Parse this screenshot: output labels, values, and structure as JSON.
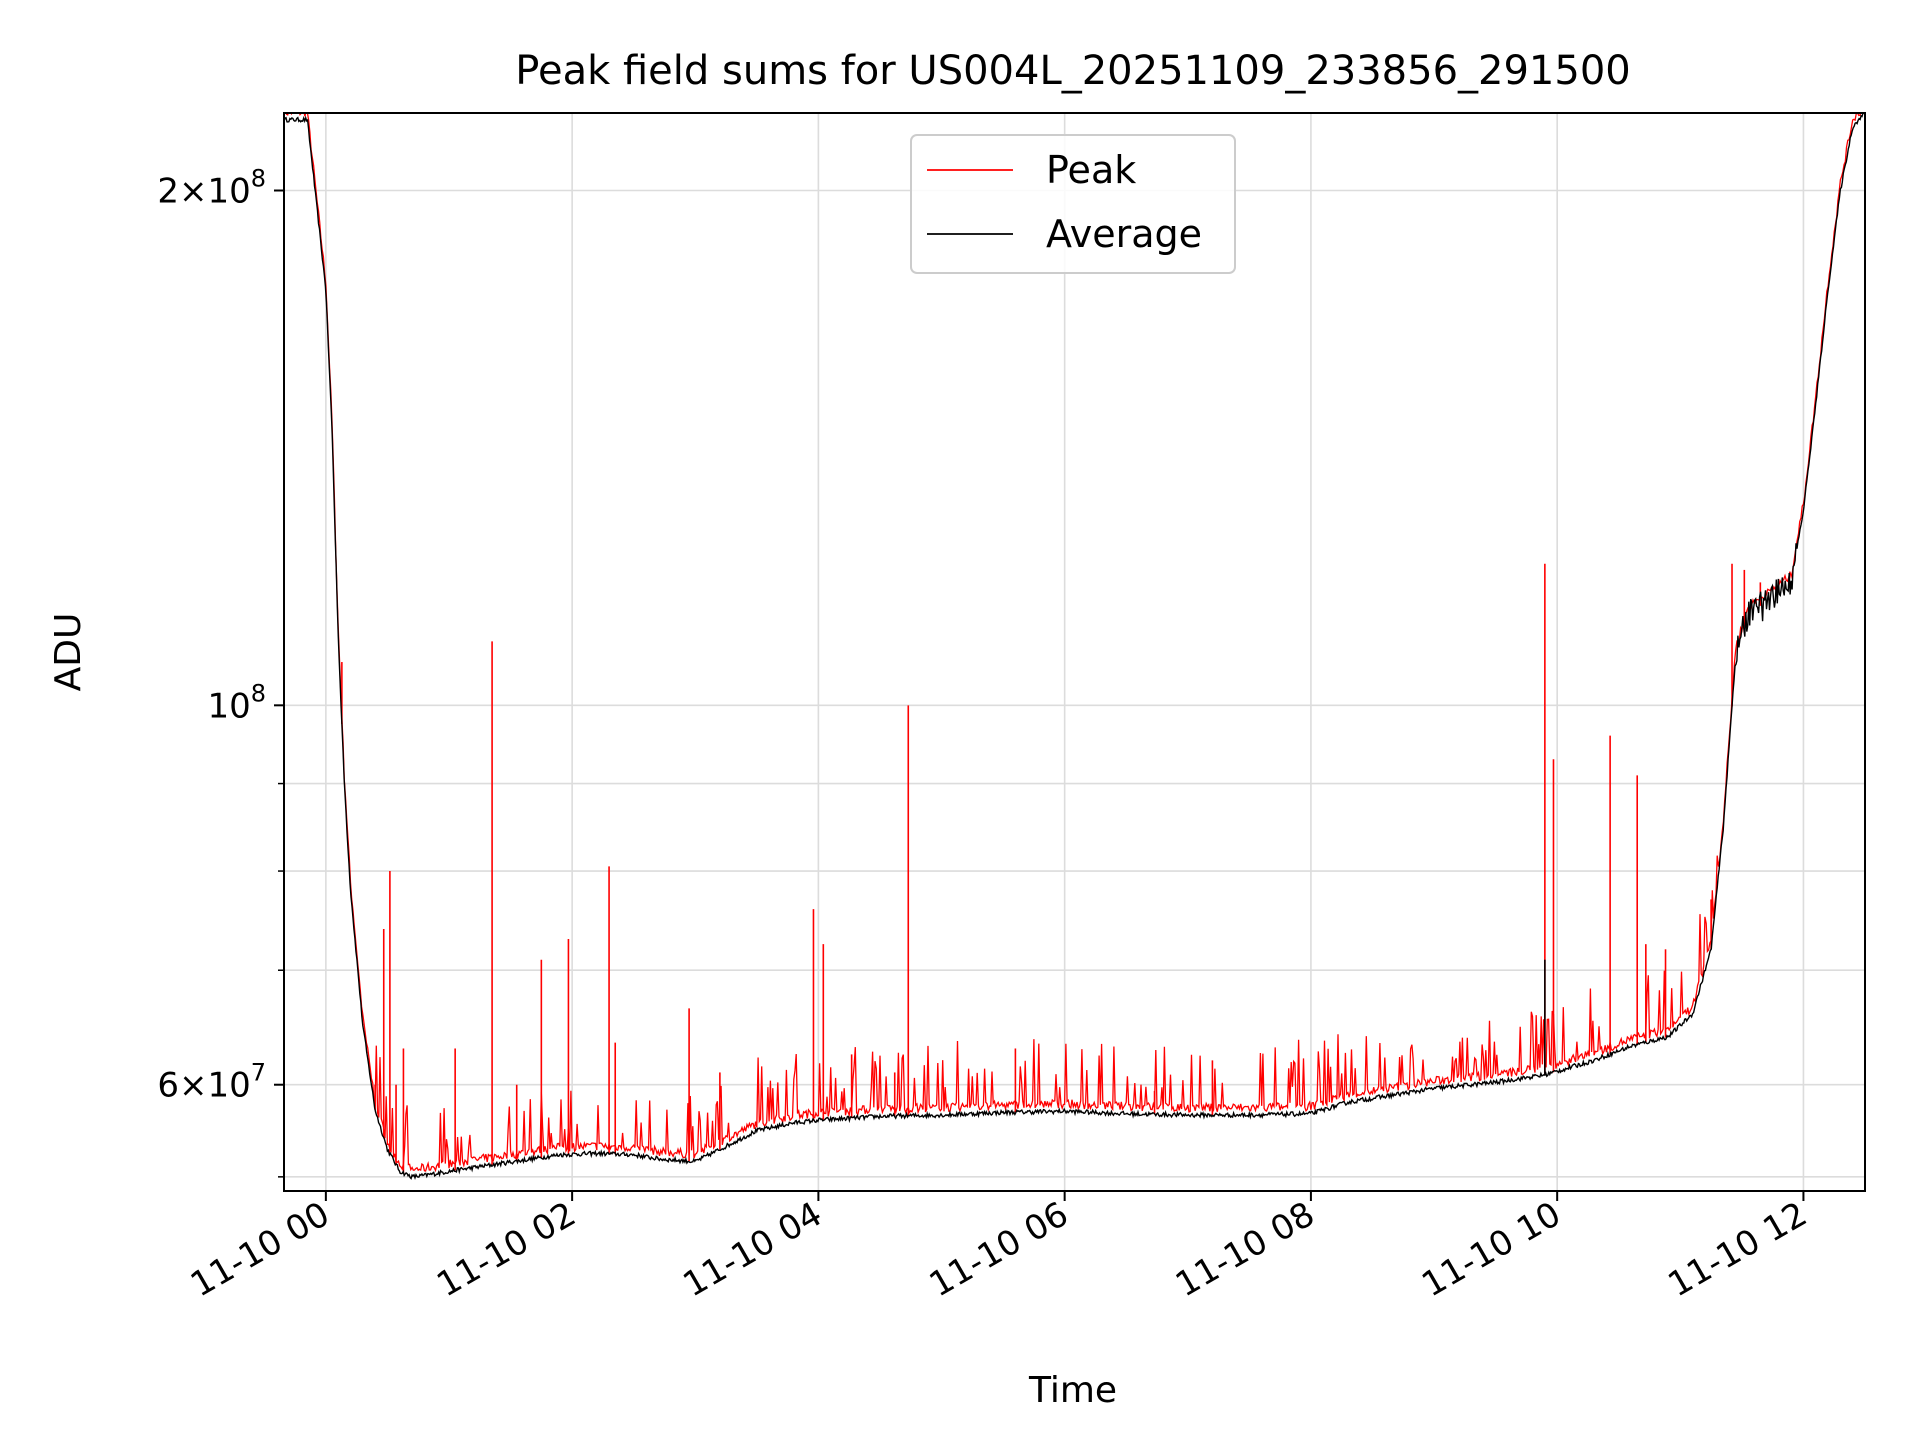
{
  "chart_data": {
    "type": "line",
    "title": "Peak field sums for US004L_20251109_233856_291500",
    "xlabel": "Time",
    "ylabel": "ADU",
    "x_tick_labels": [
      "11-10 00",
      "11-10 02",
      "11-10 04",
      "11-10 06",
      "11-10 08",
      "11-10 10",
      "11-10 12"
    ],
    "x_tick_hours": [
      0,
      2,
      4,
      6,
      8,
      10,
      12
    ],
    "xlim_hours": [
      -0.34,
      12.5
    ],
    "y_scale": "log",
    "ylim": [
      52000000,
      222000000
    ],
    "y_tick_labels": [
      {
        "base": "2×10",
        "exp": "8",
        "value": 200000000
      },
      {
        "base": "10",
        "exp": "8",
        "value": 100000000
      },
      {
        "base": "6×10",
        "exp": "7",
        "value": 60000000
      }
    ],
    "y_minor_ticks": [
      90000000,
      80000000,
      70000000,
      53000000
    ],
    "grid": true,
    "legend": {
      "position": "top-center",
      "entries": [
        {
          "name": "Peak",
          "color": "#ff0000"
        },
        {
          "name": "Average",
          "color": "#000000"
        }
      ]
    },
    "x_unit": "hours after 11-10 00:00",
    "series": [
      {
        "name": "Average",
        "color": "#000000",
        "x": [
          -0.34,
          -0.15,
          0.0,
          0.05,
          0.1,
          0.15,
          0.2,
          0.3,
          0.4,
          0.5,
          0.6,
          0.7,
          0.8,
          1.0,
          1.3,
          1.6,
          1.9,
          2.2,
          2.5,
          2.7,
          3.0,
          3.2,
          3.5,
          3.8,
          4.0,
          4.5,
          5.0,
          5.5,
          6.0,
          6.5,
          7.0,
          7.5,
          8.0,
          8.3,
          9.0,
          9.5,
          9.9,
          10.3,
          10.6,
          10.9,
          11.1,
          11.25,
          11.35,
          11.45,
          11.55,
          11.7,
          11.9,
          12.0,
          12.1,
          12.2,
          12.3,
          12.4,
          12.5
        ],
        "y": [
          220000000,
          220000000,
          175000000,
          145000000,
          110000000,
          90000000,
          78000000,
          65000000,
          58000000,
          55000000,
          53400000,
          53000000,
          53100000,
          53400000,
          53800000,
          54200000,
          54600000,
          54700000,
          54600000,
          54300000,
          54100000,
          55000000,
          56400000,
          57000000,
          57200000,
          57500000,
          57600000,
          57800000,
          57900000,
          57700000,
          57600000,
          57600000,
          57700000,
          58600000,
          59700000,
          60200000,
          60800000,
          62000000,
          63200000,
          64000000,
          66000000,
          72000000,
          85000000,
          107000000,
          113000000,
          115000000,
          118000000,
          130000000,
          150000000,
          175000000,
          200000000,
          218000000,
          222000000
        ]
      },
      {
        "name": "Peak",
        "color": "#ff0000",
        "spikes": [
          {
            "x": 0.13,
            "y": 106000000
          },
          {
            "x": 0.4,
            "y": 60000000
          },
          {
            "x": 0.47,
            "y": 74000000
          },
          {
            "x": 0.52,
            "y": 80000000
          },
          {
            "x": 0.57,
            "y": 60000000
          },
          {
            "x": 0.63,
            "y": 63000000
          },
          {
            "x": 1.05,
            "y": 63000000
          },
          {
            "x": 1.35,
            "y": 109000000
          },
          {
            "x": 1.55,
            "y": 60000000
          },
          {
            "x": 1.75,
            "y": 71000000
          },
          {
            "x": 1.97,
            "y": 73000000
          },
          {
            "x": 2.3,
            "y": 80500000
          },
          {
            "x": 2.35,
            "y": 63500000
          },
          {
            "x": 2.95,
            "y": 66500000
          },
          {
            "x": 3.2,
            "y": 61000000
          },
          {
            "x": 3.96,
            "y": 76000000
          },
          {
            "x": 4.04,
            "y": 72500000
          },
          {
            "x": 4.27,
            "y": 62500000
          },
          {
            "x": 4.62,
            "y": 61000000
          },
          {
            "x": 4.73,
            "y": 100000000
          },
          {
            "x": 5.6,
            "y": 63000000
          },
          {
            "x": 6.73,
            "y": 59500000
          },
          {
            "x": 7.2,
            "y": 62000000
          },
          {
            "x": 9.9,
            "y": 121000000
          },
          {
            "x": 9.97,
            "y": 93000000
          },
          {
            "x": 10.43,
            "y": 96000000
          },
          {
            "x": 10.65,
            "y": 91000000
          },
          {
            "x": 10.72,
            "y": 72500000
          },
          {
            "x": 10.88,
            "y": 72000000
          },
          {
            "x": 11.25,
            "y": 77000000
          },
          {
            "x": 11.42,
            "y": 121000000
          },
          {
            "x": 11.52,
            "y": 120000000
          },
          {
            "x": 11.65,
            "y": 118000000
          }
        ]
      }
    ]
  }
}
